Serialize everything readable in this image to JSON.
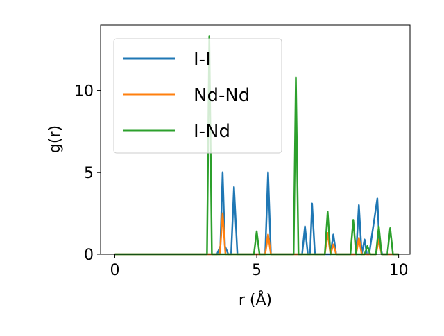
{
  "chart_data": {
    "type": "line",
    "xlabel": "r (Å)",
    "ylabel": "g(r)",
    "xlim": [
      -0.5,
      10.4
    ],
    "ylim": [
      0,
      14.0
    ],
    "xticks": [
      0,
      5,
      10
    ],
    "yticks": [
      0,
      5,
      10
    ],
    "grid": false,
    "legend_position": "top-left",
    "series": [
      {
        "name": "I-I",
        "color": "#1f77b4",
        "x": [
          0,
          3.6,
          3.72,
          3.8,
          3.88,
          4.0,
          4.1,
          4.2,
          4.32,
          5.3,
          5.4,
          5.5,
          6.6,
          6.7,
          6.8,
          6.88,
          6.95,
          7.05,
          7.6,
          7.7,
          7.8,
          8.5,
          8.6,
          8.7,
          8.8,
          8.88,
          8.96,
          9.25,
          9.32,
          9.42,
          10.0
        ],
        "y": [
          0,
          0,
          0.5,
          5.0,
          0.5,
          0,
          0,
          4.1,
          0,
          0,
          5.0,
          0,
          0,
          1.7,
          0,
          0,
          3.1,
          0,
          0,
          1.2,
          0,
          0,
          3.0,
          0,
          0.9,
          0,
          0,
          3.4,
          0.7,
          0,
          0
        ]
      },
      {
        "name": "Nd-Nd",
        "color": "#ff7f0e",
        "x": [
          0,
          3.7,
          3.8,
          3.9,
          5.3,
          5.4,
          5.5,
          7.4,
          7.5,
          7.6,
          7.7,
          7.8,
          8.5,
          8.6,
          8.7,
          9.2,
          9.3,
          9.4,
          10.0
        ],
        "y": [
          0,
          0,
          2.5,
          0,
          0,
          1.2,
          0,
          0,
          1.3,
          0,
          0.6,
          0,
          0,
          1.0,
          0,
          0,
          0.9,
          0,
          0
        ]
      },
      {
        "name": "I-Nd",
        "color": "#2ca02c",
        "x": [
          0,
          3.25,
          3.33,
          3.42,
          4.9,
          5.0,
          5.1,
          6.3,
          6.38,
          6.47,
          7.4,
          7.5,
          7.6,
          8.3,
          8.4,
          8.5,
          8.8,
          8.9,
          9.0,
          9.2,
          9.3,
          9.4,
          9.6,
          9.7,
          9.8,
          10.0
        ],
        "y": [
          0,
          0,
          13.3,
          0,
          0,
          1.4,
          0,
          0,
          10.8,
          0,
          0,
          2.6,
          0,
          0,
          2.1,
          0,
          0,
          0.5,
          0,
          0,
          1.7,
          0,
          0,
          1.6,
          0,
          0
        ]
      }
    ]
  }
}
